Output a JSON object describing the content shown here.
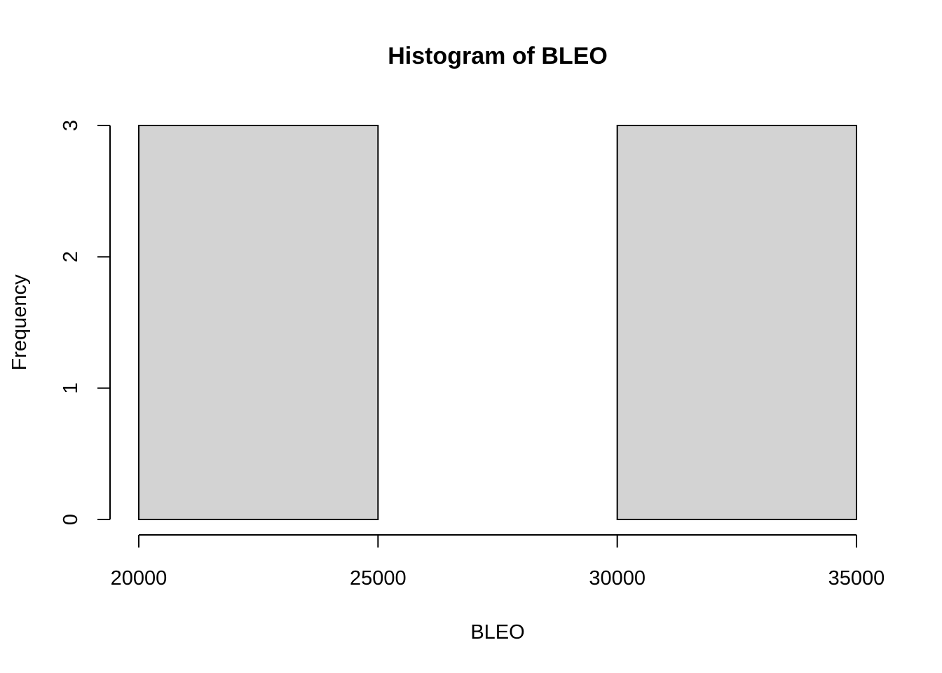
{
  "chart_data": {
    "type": "bar",
    "subtype": "histogram",
    "title": "Histogram of BLEO",
    "xlabel": "BLEO",
    "ylabel": "Frequency",
    "bins": [
      {
        "start": 20000,
        "end": 25000,
        "count": 3
      },
      {
        "start": 25000,
        "end": 30000,
        "count": 0
      },
      {
        "start": 30000,
        "end": 35000,
        "count": 3
      }
    ],
    "xlim": [
      20000,
      35000
    ],
    "ylim": [
      0,
      3
    ],
    "xticks": [
      "20000",
      "25000",
      "30000",
      "35000"
    ],
    "yticks": [
      "0",
      "1",
      "2",
      "3"
    ],
    "grid": false,
    "bar_color": "#d3d3d3",
    "edge_color": "#000000"
  }
}
